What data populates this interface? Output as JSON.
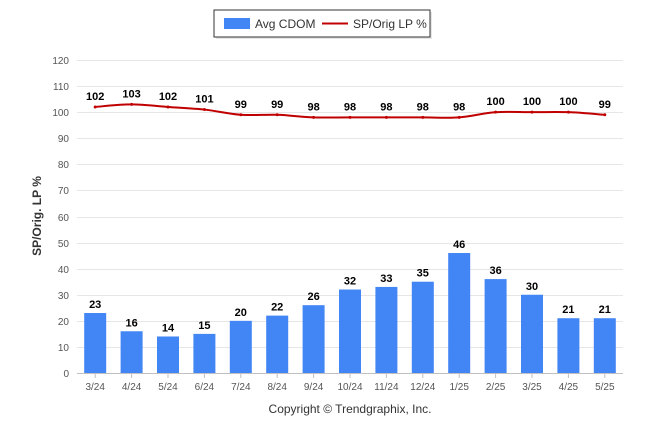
{
  "chart_data": {
    "type": "bar",
    "categories": [
      "3/24",
      "4/24",
      "5/24",
      "6/24",
      "7/24",
      "8/24",
      "9/24",
      "10/24",
      "11/24",
      "12/24",
      "1/25",
      "2/25",
      "3/25",
      "4/25",
      "5/25"
    ],
    "series": [
      {
        "name": "Avg CDOM",
        "type": "bar",
        "color": "#4285f4",
        "values": [
          23,
          16,
          14,
          15,
          20,
          22,
          26,
          32,
          33,
          35,
          46,
          36,
          30,
          21,
          21
        ]
      },
      {
        "name": "SP/Orig LP %",
        "type": "line",
        "color": "#c00000",
        "values": [
          102,
          103,
          102,
          101,
          99,
          99,
          98,
          98,
          98,
          98,
          98,
          100,
          100,
          100,
          99
        ]
      }
    ],
    "ylabel": "SP/Orig. LP %",
    "ylim": [
      0,
      120
    ],
    "yticks": [
      0,
      10,
      20,
      30,
      40,
      50,
      60,
      70,
      80,
      90,
      100,
      110,
      120
    ],
    "grid": true,
    "legend_position": "top-center"
  },
  "footer": {
    "credit": "Copyright © Trendgraphix, Inc."
  }
}
